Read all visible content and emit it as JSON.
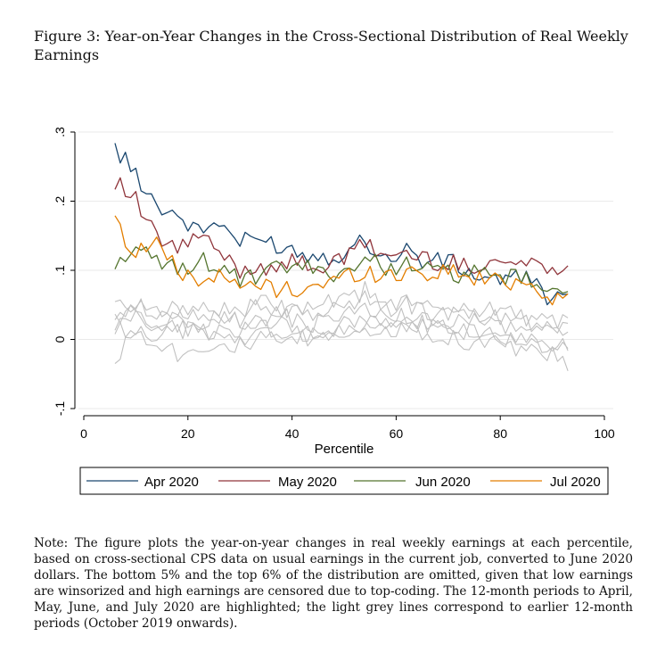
{
  "figure": {
    "title": "Figure 3:  Year-on-Year Changes in the Cross-Sectional Distribution of Real Weekly Earnings",
    "note": "Note: The figure plots the year-on-year changes in real weekly earnings at each percentile, based on cross-sectional CPS data on usual earnings in the current job, converted to June 2020 dollars. The bottom 5% and the top 6% of the distribution are omitted, given that low earnings are winsorized and high earnings are censored due to top-coding. The 12-month periods to April, May, June, and July 2020 are highlighted; the light grey lines correspond to earlier 12-month periods (October 2019 onwards)."
  },
  "chart_data": {
    "type": "line",
    "xlabel": "Percentile",
    "ylabel": "",
    "xlim": [
      0,
      100
    ],
    "ylim": [
      -0.1,
      0.3
    ],
    "xticks": [
      0,
      20,
      40,
      60,
      80,
      100
    ],
    "xtick_labels": [
      "0",
      "20",
      "40",
      "60",
      "80",
      "100"
    ],
    "yticks": [
      -0.1,
      0,
      0.1,
      0.2,
      0.3
    ],
    "ytick_labels": [
      "-.1",
      "0",
      ".1",
      ".2",
      ".3"
    ],
    "grid": "horizontal",
    "legend_position": "bottom",
    "x_sample": [
      6,
      10,
      14,
      18,
      22,
      26,
      30,
      34,
      38,
      42,
      46,
      50,
      54,
      58,
      62,
      66,
      70,
      74,
      78,
      82,
      86,
      90,
      93
    ],
    "series": [
      {
        "name": "Apr 2020",
        "color": "#1a476f",
        "highlight": true,
        "values": [
          0.275,
          0.24,
          0.195,
          0.18,
          0.155,
          0.17,
          0.14,
          0.145,
          0.135,
          0.125,
          0.12,
          0.125,
          0.145,
          0.115,
          0.13,
          0.11,
          0.115,
          0.095,
          0.09,
          0.085,
          0.09,
          0.055,
          0.065
        ]
      },
      {
        "name": "May 2020",
        "color": "#90353b",
        "highlight": true,
        "values": [
          0.23,
          0.2,
          0.145,
          0.13,
          0.15,
          0.125,
          0.1,
          0.105,
          0.11,
          0.11,
          0.105,
          0.115,
          0.14,
          0.12,
          0.125,
          0.115,
          0.11,
          0.105,
          0.115,
          0.11,
          0.11,
          0.105,
          0.112
        ]
      },
      {
        "name": "Jun 2020",
        "color": "#55752f",
        "highlight": true,
        "values": [
          0.115,
          0.125,
          0.115,
          0.1,
          0.115,
          0.105,
          0.085,
          0.09,
          0.105,
          0.105,
          0.095,
          0.1,
          0.115,
          0.105,
          0.11,
          0.1,
          0.095,
          0.095,
          0.09,
          0.09,
          0.085,
          0.06,
          0.07
        ]
      },
      {
        "name": "Jul 2020",
        "color": "#e37e00",
        "highlight": true,
        "values": [
          0.17,
          0.125,
          0.145,
          0.095,
          0.09,
          0.09,
          0.075,
          0.08,
          0.07,
          0.075,
          0.08,
          0.09,
          0.1,
          0.09,
          0.1,
          0.095,
          0.1,
          0.09,
          0.085,
          0.085,
          0.08,
          0.06,
          0.065
        ]
      },
      {
        "name": "",
        "color": "#c0c0c0",
        "highlight": false,
        "values": [
          0.04,
          0.05,
          0.03,
          0.045,
          0.04,
          0.035,
          0.03,
          0.05,
          0.04,
          0.035,
          0.04,
          0.05,
          0.06,
          0.045,
          0.05,
          0.04,
          0.035,
          0.04,
          0.03,
          0.035,
          0.025,
          0.02,
          0.02
        ]
      },
      {
        "name": "",
        "color": "#c0c0c0",
        "highlight": false,
        "values": [
          0.02,
          0.035,
          0.015,
          0.02,
          0.01,
          0.015,
          0.005,
          0.01,
          0.02,
          0.01,
          0.005,
          0.015,
          0.025,
          0.02,
          0.03,
          0.02,
          0.015,
          0.01,
          0.015,
          0.005,
          0.0,
          -0.01,
          -0.01
        ]
      },
      {
        "name": "",
        "color": "#c0c0c0",
        "highlight": false,
        "values": [
          -0.025,
          0.01,
          0.0,
          -0.02,
          -0.01,
          -0.005,
          -0.01,
          0.0,
          -0.005,
          0.0,
          0.0,
          0.01,
          0.02,
          0.005,
          0.02,
          0.01,
          0.005,
          -0.005,
          0.0,
          -0.01,
          -0.02,
          -0.02,
          -0.045
        ]
      },
      {
        "name": "",
        "color": "#c0c0c0",
        "highlight": false,
        "values": [
          0.05,
          0.04,
          0.05,
          0.035,
          0.05,
          0.045,
          0.04,
          0.055,
          0.045,
          0.04,
          0.05,
          0.055,
          0.07,
          0.05,
          0.055,
          0.045,
          0.05,
          0.04,
          0.045,
          0.04,
          0.03,
          0.025,
          0.035
        ]
      },
      {
        "name": "",
        "color": "#c0c0c0",
        "highlight": false,
        "values": [
          0.01,
          0.02,
          0.005,
          0.01,
          0.02,
          0.0,
          0.01,
          0.02,
          0.01,
          0.005,
          0.015,
          0.02,
          0.03,
          0.015,
          0.02,
          0.015,
          0.01,
          0.015,
          0.005,
          0.0,
          -0.005,
          -0.01,
          0.0
        ]
      },
      {
        "name": "",
        "color": "#c0c0c0",
        "highlight": false,
        "values": [
          0.03,
          0.045,
          0.02,
          0.03,
          0.025,
          0.04,
          0.02,
          0.03,
          0.035,
          0.02,
          0.025,
          0.04,
          0.04,
          0.03,
          0.035,
          0.03,
          0.02,
          0.03,
          0.02,
          0.02,
          0.015,
          0.01,
          0.015
        ]
      }
    ]
  }
}
